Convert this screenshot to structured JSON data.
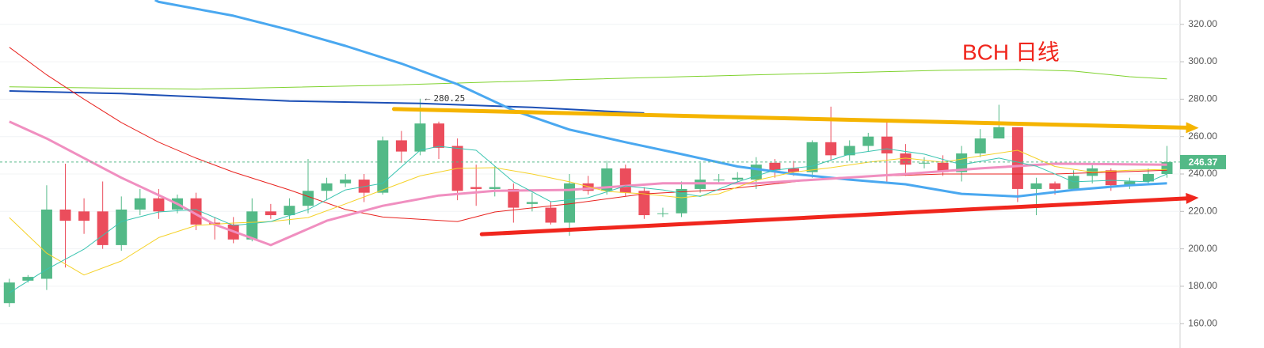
{
  "chart_data": {
    "type": "candlestick",
    "title": "BCH 日线",
    "title_color": "#f0261d",
    "up_color": "#53b987",
    "down_color": "#eb4d5c",
    "candles": {
      "open": [
        171,
        183,
        184,
        221,
        220,
        220,
        202,
        221,
        227,
        221,
        227,
        214,
        213,
        205,
        220,
        218,
        223,
        231,
        235,
        237,
        230,
        258,
        252,
        267,
        255,
        233,
        232,
        232,
        224,
        222,
        214,
        235,
        231,
        243,
        231,
        219,
        219,
        232,
        237,
        237,
        237,
        246,
        243,
        241,
        257,
        250,
        255,
        260,
        251,
        246,
        246,
        241,
        251,
        259,
        265,
        232,
        235,
        232,
        239,
        242,
        234,
        236,
        240
      ],
      "high": [
        184,
        186,
        234,
        245.5,
        227,
        236,
        228,
        232,
        232,
        229,
        230,
        217,
        217,
        227,
        224,
        227,
        248,
        238,
        240,
        240,
        260,
        263,
        280.25,
        268,
        259,
        245,
        244,
        235,
        230,
        225,
        240,
        239,
        247,
        245,
        233,
        222,
        236,
        246,
        240,
        241,
        249,
        248,
        247,
        258,
        276,
        258,
        262,
        268,
        256,
        249,
        250,
        255,
        264,
        277,
        265,
        238,
        236,
        242,
        246,
        243,
        238,
        243,
        255
      ],
      "low": [
        169,
        182,
        178,
        190,
        208,
        200,
        199,
        218,
        216,
        219,
        210,
        205,
        203,
        204,
        216,
        213,
        219,
        226,
        233,
        225,
        229,
        246,
        250,
        248,
        226,
        223,
        228,
        214,
        220,
        213,
        207,
        229,
        229,
        228,
        216,
        217,
        217,
        230,
        235,
        235,
        232,
        238,
        239,
        238,
        247,
        247,
        252,
        236,
        239,
        243,
        239,
        236,
        249,
        259,
        225,
        218,
        229,
        231,
        235,
        231,
        232,
        235,
        238
      ],
      "close": [
        182,
        185,
        221,
        215,
        215,
        202,
        221,
        227,
        220,
        227,
        213,
        213,
        205,
        220,
        218,
        223,
        231,
        235,
        237,
        230,
        258,
        252,
        267,
        254,
        231,
        232,
        233,
        222,
        225,
        214,
        235,
        231,
        243,
        230,
        218,
        219,
        232,
        237,
        237,
        238,
        245,
        242,
        241,
        257,
        250,
        255,
        260,
        251,
        245,
        246,
        241,
        251,
        259,
        265,
        232,
        235,
        232,
        239,
        243,
        234,
        236,
        240,
        246.37
      ]
    },
    "xlim": [
      -0.5,
      62.7
    ],
    "ylim": [
      147,
      333
    ],
    "yticks": [
      {
        "value": 160,
        "label": "160.00"
      },
      {
        "value": 180,
        "label": "180.00"
      },
      {
        "value": 200,
        "label": "200.00"
      },
      {
        "value": 220,
        "label": "220.00"
      },
      {
        "value": 240,
        "label": "240.00"
      },
      {
        "value": 260,
        "label": "260.00"
      },
      {
        "value": 280,
        "label": "280.00"
      },
      {
        "value": 300,
        "label": "300.00"
      },
      {
        "value": 320,
        "label": "320.00"
      }
    ],
    "grid": true,
    "price_line_color": "#53b987",
    "series": [
      {
        "color": "#7fd22e",
        "line_width": 1,
        "x": [
          0,
          10,
          20,
          30,
          40,
          50,
          54,
          57,
          60,
          62
        ],
        "values": [
          286.6,
          285.3,
          287.4,
          290.4,
          293,
          295.4,
          295.9,
          295,
          292,
          290.8
        ]
      },
      {
        "color": "#1c4fb5",
        "line_width": 2,
        "x": [
          0,
          6,
          15,
          22,
          28,
          33,
          34
        ],
        "values": [
          284.4,
          283,
          279,
          277.7,
          275.6,
          273,
          272.6
        ]
      },
      {
        "color": "#e8231f",
        "line_width": 1,
        "x": [
          0,
          2,
          4,
          6,
          8,
          10,
          12,
          15,
          18,
          20,
          24,
          26,
          30,
          34,
          38,
          44,
          50,
          56,
          62
        ],
        "values": [
          307.7,
          293,
          280,
          267.5,
          257,
          248.5,
          241,
          231.5,
          221,
          217,
          214.6,
          219.7,
          224,
          229.4,
          231.5,
          238,
          240,
          240,
          242
        ]
      },
      {
        "color": "#4aa8f0",
        "line_width": 3,
        "x": [
          7.8,
          8,
          12,
          15,
          18,
          21,
          24,
          27,
          30,
          33,
          36,
          39,
          42,
          45,
          48,
          51,
          54,
          57,
          60,
          62
        ],
        "values": [
          333,
          332,
          324.6,
          317,
          308.5,
          299,
          288,
          274,
          263.7,
          257,
          250.6,
          244,
          240,
          237,
          234.5,
          229.4,
          228,
          231.5,
          234,
          235
        ]
      },
      {
        "color": "#f08fc0",
        "line_width": 3,
        "x": [
          0,
          2,
          4,
          6,
          9,
          11,
          14,
          17,
          20,
          23,
          26,
          30,
          35,
          40,
          44,
          48,
          52,
          56,
          62
        ],
        "values": [
          268,
          259,
          248.5,
          238,
          224,
          213,
          202,
          215,
          223,
          228.5,
          231,
          231.5,
          235,
          235,
          237.5,
          240,
          243,
          245.5,
          245
        ]
      },
      {
        "color": "#f5d22a",
        "line_width": 1,
        "x": [
          0,
          2,
          4,
          6,
          8,
          10,
          12,
          14,
          16,
          18,
          20,
          22,
          24,
          26,
          28,
          30,
          32,
          34,
          36,
          38,
          40,
          42,
          44,
          46,
          48,
          50,
          52,
          54,
          56,
          58,
          60,
          62
        ],
        "values": [
          216.7,
          197.7,
          186,
          193.5,
          206,
          212.5,
          213.8,
          214.6,
          216.7,
          224,
          231.5,
          239,
          243,
          243.4,
          240,
          235.8,
          230.7,
          229.4,
          227.3,
          229.4,
          236.6,
          241,
          243.4,
          246.3,
          248.5,
          246.3,
          249.7,
          252.7,
          244,
          241,
          242,
          242.5
        ]
      },
      {
        "color": "#39c4b0",
        "line_width": 1,
        "x": [
          0,
          2,
          4,
          6,
          8,
          10,
          12,
          14,
          16,
          18,
          20,
          22,
          23,
          25,
          27,
          29,
          31,
          33,
          35,
          37,
          39,
          41,
          43,
          45,
          47,
          49,
          51,
          53,
          55,
          57,
          59,
          61,
          62
        ],
        "values": [
          176.5,
          189,
          199.8,
          214.6,
          219.7,
          221,
          212.5,
          214.6,
          221,
          231.5,
          235,
          252.7,
          254.8,
          252.7,
          235.8,
          225.2,
          227.3,
          233.6,
          231.5,
          228,
          235.8,
          242.1,
          244.2,
          250.6,
          253.5,
          250.6,
          245,
          248.5,
          244.2,
          235.8,
          236.6,
          235.8,
          240
        ]
      }
    ],
    "trendlines": [
      {
        "color": "#f5b400",
        "x": [
          20.6,
          63.7
        ],
        "values": [
          274.7,
          264.6
        ]
      },
      {
        "color": "#f0261d",
        "x": [
          25.3,
          63.7
        ],
        "values": [
          207.8,
          227.3
        ]
      }
    ]
  }
}
